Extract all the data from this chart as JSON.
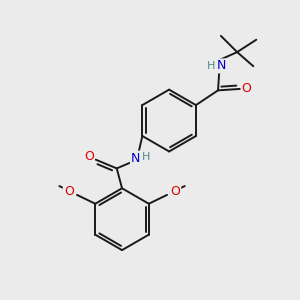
{
  "bg_color": "#ebebeb",
  "bond_color": "#1a1a1a",
  "N_color": "#0000cc",
  "O_color": "#dd0000",
  "H_color": "#558888",
  "lw": 1.4,
  "dbo": 0.12,
  "figsize": [
    3.0,
    3.0
  ],
  "dpi": 100,
  "xlim": [
    0,
    10
  ],
  "ylim": [
    0,
    10
  ]
}
